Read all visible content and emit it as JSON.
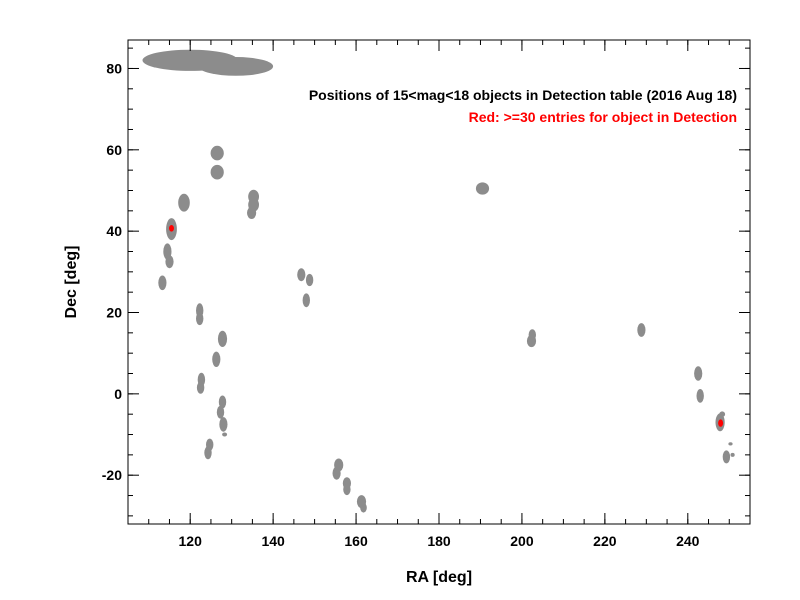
{
  "chart_data": {
    "type": "scatter",
    "title": "Positions of 15<mag<18 objects in Detection table (2016 Aug 18)",
    "subtitle": "Red: >=30 entries for object in Detection",
    "xlabel": "RA [deg]",
    "ylabel": "Dec [deg]",
    "xlim": [
      105,
      255
    ],
    "ylim": [
      -32,
      87
    ],
    "xticks": [
      120,
      140,
      160,
      180,
      200,
      220,
      240
    ],
    "yticks": [
      -20,
      0,
      20,
      40,
      60,
      80
    ],
    "grid": false,
    "colors": {
      "base": "#8c8c8c",
      "highlight": "#ff0000",
      "axis": "#000000"
    },
    "series": [
      {
        "name": "",
        "color": "#8c8c8c",
        "points": [
          {
            "x": 120,
            "y": 82.0,
            "rx": 11.5,
            "ry": 2.6
          },
          {
            "x": 131,
            "y": 80.5,
            "rx": 9.0,
            "ry": 2.3
          },
          {
            "x": 126.5,
            "y": 59.2,
            "rx": 1.6,
            "ry": 1.8
          },
          {
            "x": 126.5,
            "y": 54.5,
            "rx": 1.6,
            "ry": 1.8
          },
          {
            "x": 118.5,
            "y": 47.0,
            "rx": 1.4,
            "ry": 2.2
          },
          {
            "x": 115.5,
            "y": 40.5,
            "rx": 1.3,
            "ry": 2.7
          },
          {
            "x": 114.5,
            "y": 35.0,
            "rx": 1.0,
            "ry": 2.0
          },
          {
            "x": 115.0,
            "y": 32.5,
            "rx": 1.0,
            "ry": 1.6
          },
          {
            "x": 113.3,
            "y": 27.3,
            "rx": 1.0,
            "ry": 1.8
          },
          {
            "x": 135.3,
            "y": 48.5,
            "rx": 1.3,
            "ry": 1.7
          },
          {
            "x": 135.3,
            "y": 46.5,
            "rx": 1.3,
            "ry": 1.7
          },
          {
            "x": 134.8,
            "y": 44.5,
            "rx": 1.1,
            "ry": 1.5
          },
          {
            "x": 146.8,
            "y": 29.3,
            "rx": 1.0,
            "ry": 1.6
          },
          {
            "x": 148.8,
            "y": 28.0,
            "rx": 0.9,
            "ry": 1.5
          },
          {
            "x": 148.0,
            "y": 23.0,
            "rx": 0.9,
            "ry": 1.7
          },
          {
            "x": 122.3,
            "y": 20.5,
            "rx": 0.9,
            "ry": 1.8
          },
          {
            "x": 122.3,
            "y": 18.5,
            "rx": 0.9,
            "ry": 1.6
          },
          {
            "x": 127.8,
            "y": 13.5,
            "rx": 1.1,
            "ry": 2.0
          },
          {
            "x": 126.3,
            "y": 8.5,
            "rx": 1.0,
            "ry": 1.9
          },
          {
            "x": 122.7,
            "y": 3.5,
            "rx": 0.9,
            "ry": 1.7
          },
          {
            "x": 122.5,
            "y": 1.5,
            "rx": 0.9,
            "ry": 1.5
          },
          {
            "x": 127.8,
            "y": -2.0,
            "rx": 0.9,
            "ry": 1.6
          },
          {
            "x": 127.3,
            "y": -4.5,
            "rx": 0.9,
            "ry": 1.6
          },
          {
            "x": 128.0,
            "y": -7.5,
            "rx": 1.0,
            "ry": 1.8
          },
          {
            "x": 128.3,
            "y": -10.0,
            "rx": 0.6,
            "ry": 0.5
          },
          {
            "x": 124.7,
            "y": -12.5,
            "rx": 0.9,
            "ry": 1.5
          },
          {
            "x": 124.3,
            "y": -14.5,
            "rx": 0.9,
            "ry": 1.6
          },
          {
            "x": 155.8,
            "y": -17.5,
            "rx": 1.1,
            "ry": 1.6
          },
          {
            "x": 155.3,
            "y": -19.5,
            "rx": 1.0,
            "ry": 1.6
          },
          {
            "x": 157.8,
            "y": -22.0,
            "rx": 1.0,
            "ry": 1.5
          },
          {
            "x": 157.8,
            "y": -23.5,
            "rx": 0.9,
            "ry": 1.4
          },
          {
            "x": 161.3,
            "y": -26.5,
            "rx": 1.1,
            "ry": 1.6
          },
          {
            "x": 161.8,
            "y": -28.0,
            "rx": 0.8,
            "ry": 1.2
          },
          {
            "x": 190.5,
            "y": 50.5,
            "rx": 1.6,
            "ry": 1.5
          },
          {
            "x": 202.5,
            "y": 14.5,
            "rx": 0.9,
            "ry": 1.4
          },
          {
            "x": 202.3,
            "y": 13.0,
            "rx": 1.1,
            "ry": 1.5
          },
          {
            "x": 228.8,
            "y": 15.7,
            "rx": 1.0,
            "ry": 1.7
          },
          {
            "x": 242.5,
            "y": 5.0,
            "rx": 1.0,
            "ry": 1.8
          },
          {
            "x": 243.0,
            "y": -0.5,
            "rx": 0.9,
            "ry": 1.7
          },
          {
            "x": 247.8,
            "y": -7.0,
            "rx": 1.1,
            "ry": 2.2
          },
          {
            "x": 248.3,
            "y": -5.0,
            "rx": 0.7,
            "ry": 0.7
          },
          {
            "x": 250.3,
            "y": -12.3,
            "rx": 0.5,
            "ry": 0.4
          },
          {
            "x": 249.3,
            "y": -15.5,
            "rx": 0.9,
            "ry": 1.6
          },
          {
            "x": 250.8,
            "y": -15.0,
            "rx": 0.5,
            "ry": 0.5
          }
        ]
      },
      {
        "name": "",
        "color": "#ff0000",
        "points": [
          {
            "x": 115.5,
            "y": 40.7,
            "rx": 0.6,
            "ry": 0.8
          },
          {
            "x": 247.9,
            "y": -7.2,
            "rx": 0.6,
            "ry": 0.9
          }
        ]
      }
    ]
  }
}
